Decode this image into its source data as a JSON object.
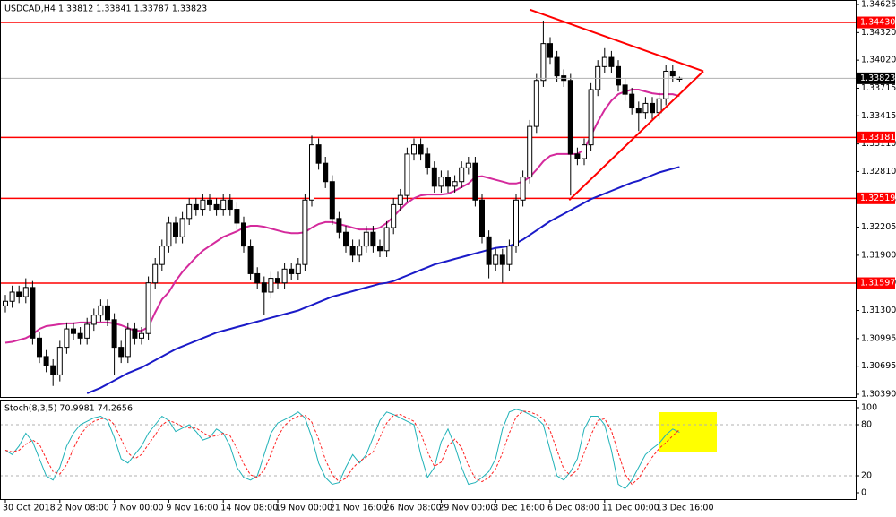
{
  "chart_data": {
    "type": "candlestick",
    "title": "USDCAD,H4 1.33812 1.33841 1.33787 1.33823",
    "categories": [
      "30 Oct 2018",
      null,
      null,
      null,
      null,
      null,
      null,
      null,
      "2 Nov 08:00",
      null,
      null,
      null,
      null,
      null,
      null,
      null,
      "7 Nov 00:00",
      null,
      null,
      null,
      null,
      null,
      null,
      null,
      "9 Nov 16:00",
      null,
      null,
      null,
      null,
      null,
      null,
      null,
      "14 Nov 08:00",
      null,
      null,
      null,
      null,
      null,
      null,
      null,
      "19 Nov 00:00",
      null,
      null,
      null,
      null,
      null,
      null,
      null,
      "21 Nov 16:00",
      null,
      null,
      null,
      null,
      null,
      null,
      null,
      "26 Nov 08:00",
      null,
      null,
      null,
      null,
      null,
      null,
      null,
      "29 Nov 00:00",
      null,
      null,
      null,
      null,
      null,
      null,
      null,
      "3 Dec 16:00",
      null,
      null,
      null,
      null,
      null,
      null,
      null,
      "6 Dec 08:00",
      null,
      null,
      null,
      null,
      null,
      null,
      null,
      "11 Dec 00:00",
      null,
      null,
      null,
      null,
      null,
      null,
      null,
      "13 Dec 16:00",
      null,
      null,
      null
    ],
    "open": [
      1.3135,
      1.314,
      1.315,
      1.3145,
      1.3155,
      1.31,
      1.308,
      1.307,
      1.306,
      1.309,
      1.311,
      1.3105,
      1.31,
      1.3115,
      1.3125,
      1.3135,
      1.312,
      1.309,
      1.308,
      1.311,
      1.31,
      1.3105,
      1.316,
      1.318,
      1.32,
      1.3225,
      1.321,
      1.323,
      1.3245,
      1.324,
      1.325,
      1.3245,
      1.324,
      1.325,
      1.324,
      1.3225,
      1.32,
      1.317,
      1.316,
      1.315,
      1.3165,
      1.316,
      1.3175,
      1.317,
      1.318,
      1.325,
      1.331,
      1.329,
      1.327,
      1.323,
      1.3215,
      1.32,
      1.319,
      1.32,
      1.3215,
      1.32,
      1.3195,
      1.322,
      1.3245,
      1.3255,
      1.33,
      1.331,
      1.33,
      1.3285,
      1.3265,
      1.3275,
      1.3265,
      1.327,
      1.3285,
      1.329,
      1.325,
      1.321,
      1.318,
      1.319,
      1.318,
      1.32,
      1.325,
      1.3275,
      1.333,
      1.338,
      1.342,
      1.3405,
      1.3385,
      1.338,
      1.33,
      1.3295,
      1.331,
      1.337,
      1.3395,
      1.3405,
      1.3395,
      1.3375,
      1.3365,
      1.335,
      1.3345,
      1.3355,
      1.3345,
      1.336,
      1.339,
      1.33812
    ],
    "high": [
      1.3147,
      1.3157,
      1.3157,
      1.3165,
      1.3162,
      1.3107,
      1.3087,
      1.3077,
      1.3097,
      1.3117,
      1.3117,
      1.3112,
      1.3122,
      1.3132,
      1.3142,
      1.3142,
      1.3127,
      1.3097,
      1.3117,
      1.3117,
      1.3112,
      1.3167,
      1.3187,
      1.3207,
      1.3232,
      1.3232,
      1.3237,
      1.3252,
      1.3252,
      1.3257,
      1.3257,
      1.3252,
      1.3257,
      1.3257,
      1.3247,
      1.3232,
      1.3207,
      1.3177,
      1.3167,
      1.3172,
      1.3172,
      1.3182,
      1.3182,
      1.3187,
      1.3257,
      1.332,
      1.3317,
      1.3297,
      1.3277,
      1.3237,
      1.3222,
      1.3207,
      1.3207,
      1.3222,
      1.3222,
      1.3207,
      1.3227,
      1.3252,
      1.3262,
      1.3307,
      1.3317,
      1.3317,
      1.3307,
      1.3292,
      1.3282,
      1.3282,
      1.3277,
      1.3292,
      1.3297,
      1.3297,
      1.3257,
      1.3217,
      1.3197,
      1.3197,
      1.3207,
      1.3257,
      1.3282,
      1.3337,
      1.3387,
      1.3445,
      1.3427,
      1.3412,
      1.3392,
      1.3387,
      1.3307,
      1.3317,
      1.3377,
      1.3402,
      1.3415,
      1.3412,
      1.3402,
      1.3382,
      1.3372,
      1.3357,
      1.3362,
      1.3362,
      1.3367,
      1.3397,
      1.3397,
      1.33841
    ],
    "low": [
      1.3128,
      1.3133,
      1.3138,
      1.3138,
      1.3093,
      1.3073,
      1.3063,
      1.3048,
      1.3053,
      1.3083,
      1.3098,
      1.3093,
      1.3093,
      1.3108,
      1.3118,
      1.3113,
      1.306,
      1.3073,
      1.3073,
      1.3093,
      1.3093,
      1.3098,
      1.3153,
      1.3173,
      1.3193,
      1.3203,
      1.3203,
      1.3223,
      1.3233,
      1.3233,
      1.3238,
      1.3233,
      1.3233,
      1.3233,
      1.3218,
      1.3193,
      1.3163,
      1.3153,
      1.3125,
      1.3143,
      1.3153,
      1.3153,
      1.3163,
      1.3163,
      1.3173,
      1.3243,
      1.3283,
      1.3263,
      1.3223,
      1.3208,
      1.3193,
      1.3183,
      1.3183,
      1.3193,
      1.3193,
      1.3188,
      1.3188,
      1.3213,
      1.3238,
      1.3248,
      1.3293,
      1.3293,
      1.3278,
      1.3258,
      1.3258,
      1.3258,
      1.3258,
      1.3263,
      1.3278,
      1.3243,
      1.3203,
      1.3165,
      1.3173,
      1.316,
      1.3173,
      1.3193,
      1.3243,
      1.3268,
      1.3323,
      1.3373,
      1.3398,
      1.3378,
      1.3373,
      1.3255,
      1.3288,
      1.3288,
      1.3303,
      1.3363,
      1.3388,
      1.3388,
      1.3368,
      1.3358,
      1.3343,
      1.3325,
      1.3338,
      1.3338,
      1.3338,
      1.3353,
      1.3378,
      1.33787
    ],
    "close": [
      1.314,
      1.315,
      1.3145,
      1.3155,
      1.31,
      1.308,
      1.307,
      1.306,
      1.309,
      1.311,
      1.3105,
      1.31,
      1.3115,
      1.3125,
      1.3135,
      1.312,
      1.309,
      1.308,
      1.311,
      1.31,
      1.3105,
      1.316,
      1.318,
      1.32,
      1.3225,
      1.321,
      1.323,
      1.3245,
      1.324,
      1.325,
      1.3245,
      1.324,
      1.325,
      1.324,
      1.3225,
      1.32,
      1.317,
      1.316,
      1.315,
      1.3165,
      1.316,
      1.3175,
      1.317,
      1.318,
      1.325,
      1.331,
      1.329,
      1.327,
      1.323,
      1.3215,
      1.32,
      1.319,
      1.32,
      1.3215,
      1.32,
      1.3195,
      1.322,
      1.3245,
      1.3255,
      1.33,
      1.331,
      1.33,
      1.3285,
      1.3265,
      1.3275,
      1.3265,
      1.327,
      1.3285,
      1.329,
      1.325,
      1.321,
      1.318,
      1.319,
      1.318,
      1.32,
      1.325,
      1.3275,
      1.333,
      1.338,
      1.342,
      1.3405,
      1.3385,
      1.338,
      1.33,
      1.3295,
      1.331,
      1.337,
      1.3395,
      1.3405,
      1.3395,
      1.3375,
      1.3365,
      1.335,
      1.3345,
      1.3355,
      1.3345,
      1.336,
      1.339,
      1.3385,
      1.33823
    ],
    "overlays": [
      {
        "color": "#d42a9c",
        "values": [
          1.3095,
          1.3096,
          1.3098,
          1.31,
          1.3104,
          1.311,
          1.3113,
          1.3114,
          1.3115,
          1.3116,
          1.3116,
          1.3117,
          1.3117,
          1.3117,
          1.3117,
          1.3117,
          1.3116,
          1.3114,
          1.3111,
          1.3108,
          1.3108,
          1.3112,
          1.3128,
          1.3142,
          1.315,
          1.3162,
          1.3172,
          1.318,
          1.3188,
          1.3195,
          1.32,
          1.3205,
          1.321,
          1.3213,
          1.3216,
          1.322,
          1.3222,
          1.3222,
          1.3221,
          1.3219,
          1.3217,
          1.3215,
          1.3214,
          1.3214,
          1.3215,
          1.322,
          1.3224,
          1.3226,
          1.3226,
          1.3224,
          1.3222,
          1.322,
          1.3218,
          1.3218,
          1.3218,
          1.322,
          1.3225,
          1.3232,
          1.324,
          1.3247,
          1.3252,
          1.3255,
          1.3256,
          1.3256,
          1.3256,
          1.3257,
          1.326,
          1.3264,
          1.3268,
          1.3275,
          1.3276,
          1.3274,
          1.3272,
          1.327,
          1.3268,
          1.3268,
          1.327,
          1.3275,
          1.3283,
          1.3292,
          1.3298,
          1.33,
          1.33,
          1.33,
          1.33,
          1.3305,
          1.332,
          1.3335,
          1.3348,
          1.3358,
          1.3365,
          1.3368,
          1.337,
          1.337,
          1.3368,
          1.3366,
          1.3365,
          1.3365,
          1.3365,
          1.3363
        ]
      },
      {
        "color": "#1a1ac8",
        "values": [
          null,
          null,
          null,
          null,
          null,
          null,
          null,
          null,
          null,
          null,
          null,
          null,
          1.304,
          1.3043,
          1.3046,
          1.305,
          1.3054,
          1.3058,
          1.3062,
          1.3065,
          1.3068,
          1.3072,
          1.3076,
          1.308,
          1.3084,
          1.3088,
          1.3091,
          1.3094,
          1.3097,
          1.31,
          1.3103,
          1.3106,
          1.3108,
          1.311,
          1.3112,
          1.3114,
          1.3116,
          1.3118,
          1.312,
          1.3122,
          1.3124,
          1.3126,
          1.3128,
          1.313,
          1.3133,
          1.3136,
          1.3139,
          1.3142,
          1.3145,
          1.3147,
          1.3149,
          1.3151,
          1.3153,
          1.3155,
          1.3157,
          1.3159,
          1.316,
          1.3162,
          1.3165,
          1.3168,
          1.3171,
          1.3174,
          1.3177,
          1.318,
          1.3182,
          1.3184,
          1.3186,
          1.3188,
          1.319,
          1.3192,
          1.3194,
          1.3196,
          1.3198,
          1.3199,
          1.32,
          1.3203,
          1.3207,
          1.3212,
          1.3217,
          1.3222,
          1.3227,
          1.3231,
          1.3235,
          1.3239,
          1.3243,
          1.3247,
          1.3251,
          1.3254,
          1.3257,
          1.326,
          1.3263,
          1.3266,
          1.3269,
          1.3271,
          1.3274,
          1.3277,
          1.328,
          1.3282,
          1.3284,
          1.3286
        ]
      }
    ],
    "levels": [
      {
        "value": 1.3443,
        "label": "1.34430"
      },
      1.33181,
      1.32519,
      1.31597
    ],
    "level_color": "#ff0000",
    "trendlines": [
      {
        "color": "#ff0000",
        "points": [
          [
            77,
            1.3457
          ],
          [
            102.5,
            1.339
          ]
        ]
      },
      {
        "color": "#ff0000",
        "points": [
          [
            82.8,
            1.325
          ],
          [
            102.5,
            1.339
          ]
        ]
      }
    ],
    "ylim": [
      1.3039,
      1.34625
    ],
    "yticks": [
      1.34625,
      {
        "value": 1.3432,
        "label": "1.34320"
      },
      {
        "value": 1.3402,
        "label": "1.34020"
      },
      1.33715,
      1.33415,
      {
        "value": 1.3311,
        "label": "1.33110"
      },
      {
        "value": 1.3281,
        "label": "1.32810"
      },
      1.32505,
      1.32205,
      {
        "value": 1.319,
        "label": "1.31900"
      },
      {
        "value": 1.316,
        "label": "1.31600"
      },
      {
        "value": 1.313,
        "label": "1.31300"
      },
      1.30995,
      1.30695,
      {
        "value": 1.3039,
        "label": "1.30390"
      }
    ],
    "indicator": {
      "title": "Stoch(8,3,5) 70.9981 74.2656",
      "ylim": [
        0,
        100
      ],
      "yticks": [
        100,
        80,
        20,
        0
      ],
      "series": [
        {
          "color": "#20b2b8",
          "values": [
            50,
            45,
            55,
            70,
            60,
            40,
            20,
            15,
            30,
            55,
            70,
            80,
            84,
            88,
            90,
            85,
            65,
            40,
            35,
            45,
            55,
            70,
            80,
            90,
            85,
            72,
            76,
            80,
            72,
            62,
            65,
            75,
            70,
            55,
            30,
            18,
            15,
            20,
            45,
            70,
            82,
            86,
            90,
            95,
            88,
            65,
            35,
            18,
            10,
            12,
            30,
            45,
            35,
            45,
            65,
            85,
            95,
            92,
            88,
            84,
            80,
            45,
            18,
            30,
            60,
            75,
            55,
            30,
            10,
            12,
            18,
            25,
            40,
            75,
            95,
            98,
            96,
            92,
            88,
            80,
            50,
            20,
            15,
            25,
            40,
            75,
            90,
            90,
            80,
            50,
            10,
            5,
            15,
            30,
            45,
            52,
            58,
            68,
            75,
            70.9981
          ]
        },
        {
          "color": "#ff2020",
          "dash": true,
          "values": [
            50,
            48,
            50,
            57,
            62,
            57,
            40,
            25,
            22,
            33,
            52,
            68,
            78,
            84,
            87,
            88,
            80,
            63,
            47,
            40,
            45,
            57,
            68,
            80,
            85,
            82,
            78,
            76,
            76,
            71,
            66,
            67,
            70,
            67,
            52,
            34,
            21,
            18,
            27,
            45,
            66,
            79,
            86,
            90,
            91,
            83,
            63,
            39,
            21,
            13,
            17,
            29,
            37,
            42,
            48,
            65,
            82,
            91,
            92,
            88,
            84,
            70,
            48,
            31,
            36,
            55,
            63,
            53,
            32,
            17,
            13,
            18,
            28,
            47,
            70,
            89,
            96,
            95,
            92,
            87,
            73,
            50,
            28,
            20,
            27,
            47,
            68,
            85,
            87,
            73,
            47,
            22,
            10,
            17,
            30,
            42,
            52,
            59,
            67,
            74.2656
          ]
        }
      ]
    }
  }
}
